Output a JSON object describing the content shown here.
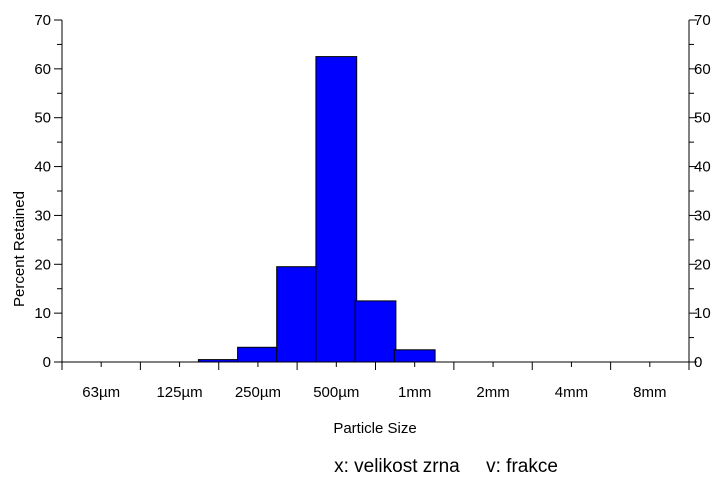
{
  "chart_data": {
    "type": "bar",
    "x_tick_labels": [
      "63µm",
      "125µm",
      "250µm",
      "500µm",
      "1mm",
      "2mm",
      "4mm",
      "8mm"
    ],
    "bins": [
      {
        "x": 2.5,
        "value": 0.5
      },
      {
        "x": 3.0,
        "value": 3
      },
      {
        "x": 3.5,
        "value": 19.5
      },
      {
        "x": 4.0,
        "value": 62.5
      },
      {
        "x": 4.5,
        "value": 12.5
      },
      {
        "x": 5.0,
        "value": 2.5
      }
    ],
    "xlabel": "Particle Size",
    "ylabel": "Percent Retained",
    "ylim": [
      0,
      70
    ],
    "y_ticks": [
      0,
      10,
      20,
      30,
      40,
      50,
      60,
      70
    ],
    "y_ticks_right": [
      0,
      10,
      20,
      30,
      40,
      50,
      60,
      70
    ],
    "bar_color": "#0000ff",
    "grid": false,
    "legend": "none"
  },
  "caption": {
    "text": "x: velikost zrna     v: frakce"
  }
}
